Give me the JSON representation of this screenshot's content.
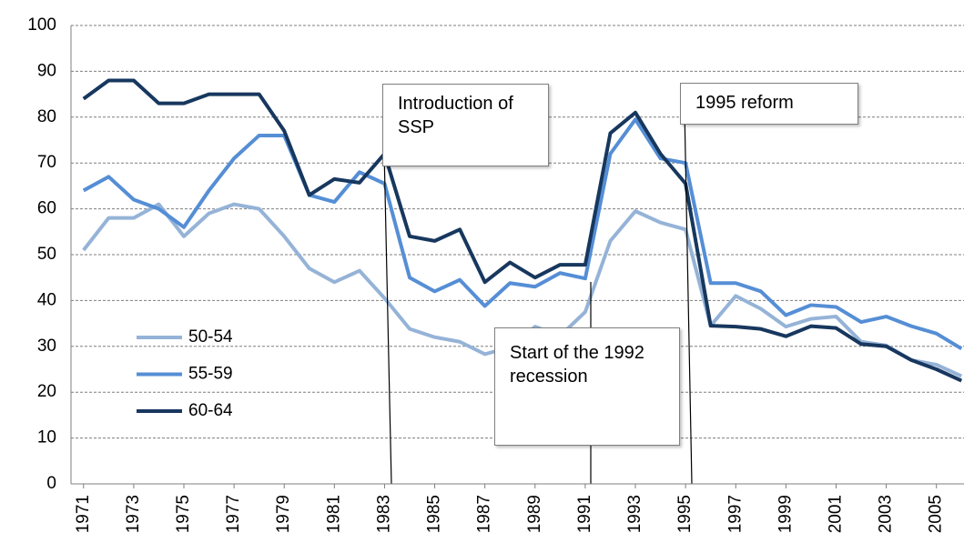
{
  "chart_data": {
    "type": "line",
    "x": [
      1971,
      1972,
      1973,
      1974,
      1975,
      1976,
      1977,
      1978,
      1979,
      1980,
      1981,
      1982,
      1983,
      1984,
      1985,
      1986,
      1987,
      1988,
      1989,
      1990,
      1991,
      1992,
      1993,
      1994,
      1995,
      1996,
      1997,
      1998,
      1999,
      2000,
      2001,
      2002,
      2003,
      2004,
      2005,
      2006
    ],
    "series": [
      {
        "name": "50-54",
        "color": "#95b3d7",
        "values": [
          51,
          58,
          58,
          61,
          54,
          59,
          61,
          60,
          54,
          47,
          44,
          46.5,
          40.5,
          33.8,
          32,
          31,
          28.3,
          29.8,
          34.3,
          32.3,
          37.5,
          53,
          59.5,
          57,
          55.5,
          34.5,
          41,
          38.2,
          34.3,
          36,
          36.5,
          31,
          30.2,
          27,
          26,
          23.5
        ]
      },
      {
        "name": "55-59",
        "color": "#558ed5",
        "values": [
          64,
          67,
          62,
          60,
          56,
          64,
          71,
          76,
          76,
          63,
          61.5,
          68,
          65.5,
          45,
          42,
          44.5,
          38.8,
          43.8,
          43,
          46,
          44.8,
          72,
          79.5,
          71,
          70,
          43.8,
          43.8,
          42,
          36.8,
          39,
          38.6,
          35.3,
          36.5,
          34.4,
          32.8,
          29.5
        ]
      },
      {
        "name": "60-64",
        "color": "#17375e",
        "values": [
          84,
          88,
          88,
          83,
          83,
          85,
          85,
          85,
          77,
          63,
          66.5,
          65.7,
          72,
          54,
          53,
          55.5,
          44,
          48.3,
          45,
          47.8,
          47.8,
          76.5,
          81,
          72,
          65.5,
          34.5,
          34.3,
          33.8,
          32.2,
          34.4,
          34,
          30.5,
          30,
          27,
          25,
          22.5
        ]
      }
    ],
    "ylim": [
      0,
      100
    ],
    "yticks": [
      0,
      10,
      20,
      30,
      40,
      50,
      60,
      70,
      80,
      90,
      100
    ],
    "xlim": [
      1970.5,
      2006.1
    ],
    "xticks": [
      1971,
      1973,
      1975,
      1977,
      1979,
      1981,
      1983,
      1985,
      1987,
      1989,
      1991,
      1993,
      1995,
      1997,
      1999,
      2001,
      2003,
      2005
    ],
    "grid": true,
    "legend": "center-left",
    "annotations": [
      "Introduction of SSP",
      "Start of the 1992 recession",
      "1995 reform"
    ]
  }
}
